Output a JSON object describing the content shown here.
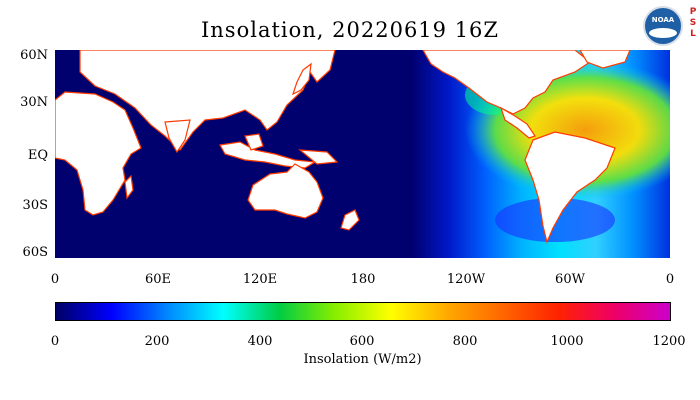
{
  "title": "Insolation, 20220619 16Z",
  "logo": {
    "text": "NOAA",
    "side_text": "P\nS\nL"
  },
  "lat_labels": [
    "60N",
    "30N",
    "EQ",
    "30S",
    "60S"
  ],
  "lon_labels": [
    "0",
    "60E",
    "120E",
    "180",
    "120W",
    "60W",
    "0"
  ],
  "colorbar": {
    "ticks": [
      "0",
      "200",
      "400",
      "600",
      "800",
      "1000",
      "1200"
    ],
    "label": "Insolation (W/m2)",
    "colors": [
      "#000066",
      "#0000ff",
      "#0088ff",
      "#00ffff",
      "#00cc44",
      "#88ee00",
      "#ffff00",
      "#ffaa00",
      "#ff6600",
      "#ff2200",
      "#ee0066",
      "#cc00cc"
    ]
  },
  "colors": {
    "ocean_dark": "#00006e",
    "land": "#ffffff",
    "coast": "#ff3b00"
  }
}
